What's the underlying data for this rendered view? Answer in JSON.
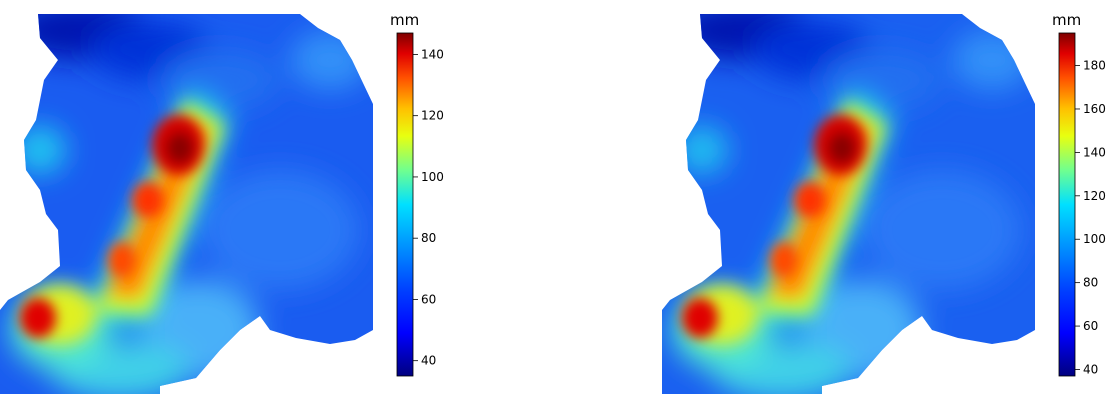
{
  "colors": {
    "background": "#ffffff",
    "palette": [
      "#00007f",
      "#0000ff",
      "#007fff",
      "#00ffff",
      "#7fff7f",
      "#ffff00",
      "#ff7f00",
      "#ff0000",
      "#7f0000"
    ]
  },
  "maps": [
    {
      "unit": "mm",
      "legend_ticks": [
        "40",
        "60",
        "80",
        "100",
        "120",
        "140"
      ],
      "scale_min": 35,
      "scale_max": 147,
      "pattern": "precipitation-field-1"
    },
    {
      "unit": "mm",
      "legend_ticks": [
        "40",
        "60",
        "80",
        "100",
        "120",
        "140",
        "160",
        "180"
      ],
      "scale_min": 37,
      "scale_max": 195,
      "pattern": "precipitation-field-2"
    }
  ]
}
